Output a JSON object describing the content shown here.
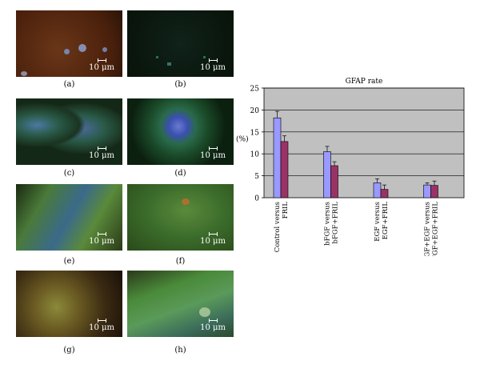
{
  "figure": {
    "panels": [
      {
        "label": "(a)",
        "scale": "10 μm",
        "bg": "#5a2812"
      },
      {
        "label": "(b)",
        "scale": "10 μm",
        "bg": "#0c1a0c"
      },
      {
        "label": "(c)",
        "scale": "10 μm",
        "bg": "#203820"
      },
      {
        "label": "(d)",
        "scale": "10 μm",
        "bg": "#0e2612"
      },
      {
        "label": "(e)",
        "scale": "10 μm",
        "bg": "#3a5a2a"
      },
      {
        "label": "(f)",
        "scale": "10 μm",
        "bg": "#3a6a2a"
      },
      {
        "label": "(g)",
        "scale": "10 μm",
        "bg": "#4a3a1a"
      },
      {
        "label": "(h)",
        "scale": "10 μm",
        "bg": "#3a6a30"
      }
    ]
  },
  "chart_data": {
    "type": "bar",
    "title": "GFAP rate",
    "xlabel": "",
    "ylabel": "(%)",
    "ylim": [
      0,
      25
    ],
    "yticks": [
      0,
      5,
      10,
      15,
      20,
      25
    ],
    "grid": true,
    "legend": "none",
    "categories": [
      [
        "Control versus",
        "FRIL"
      ],
      [
        "bFGF versus",
        "bFGF+FRIL"
      ],
      [
        "EGF versus",
        "EGF+FRIL"
      ],
      [
        "bFGF+EGF versus",
        "bFGF+EGF+FRIL"
      ]
    ],
    "series": [
      {
        "values": [
          18.2,
          10.5,
          3.4,
          2.9
        ],
        "errors": [
          1.5,
          1.2,
          0.9,
          0.5
        ],
        "color": "#9999ff"
      },
      {
        "values": [
          12.8,
          7.3,
          1.9,
          2.8
        ],
        "errors": [
          1.3,
          0.9,
          1.0,
          1.0
        ],
        "color": "#993366"
      }
    ],
    "plot_bg": "#c0c0c0"
  }
}
